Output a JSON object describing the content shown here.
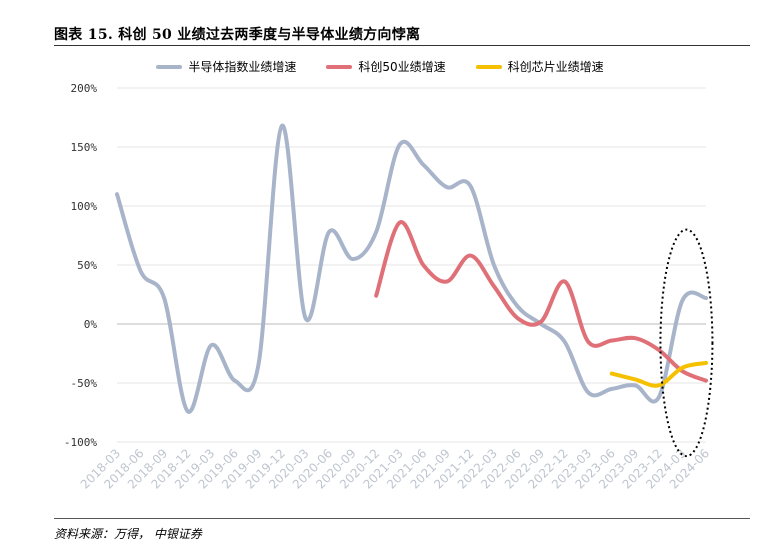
{
  "title": "图表 15. 科创 50 业绩过去两季度与半导体业绩方向悖离",
  "source": "资料来源：万得， 中银证券",
  "chart_data": {
    "type": "line",
    "categories": [
      "2018-03",
      "2018-06",
      "2018-09",
      "2018-12",
      "2019-03",
      "2019-06",
      "2019-09",
      "2019-12",
      "2020-03",
      "2020-06",
      "2020-09",
      "2020-12",
      "2021-03",
      "2021-06",
      "2021-09",
      "2021-12",
      "2022-03",
      "2022-06",
      "2022-09",
      "2022-12",
      "2023-03",
      "2023-06",
      "2023-09",
      "2023-12",
      "2024-03",
      "2024-06"
    ],
    "y_ticks": [
      "200%",
      "150%",
      "100%",
      "50%",
      "0%",
      "-50%",
      "-100%"
    ],
    "ylim": [
      -100,
      200
    ],
    "grid": "horizontal",
    "legend_position": "top",
    "series": [
      {
        "name": "半导体指数业绩增速",
        "color": "#a8b4c9",
        "values": [
          110,
          45,
          22,
          -74,
          -18,
          -48,
          -35,
          168,
          5,
          78,
          55,
          78,
          152,
          135,
          116,
          117,
          50,
          15,
          0,
          -15,
          -58,
          -55,
          -52,
          -62,
          20,
          22
        ]
      },
      {
        "name": "科创50业绩增速",
        "color": "#e07078",
        "values": [
          null,
          null,
          null,
          null,
          null,
          null,
          null,
          null,
          null,
          null,
          null,
          24,
          86,
          50,
          36,
          58,
          32,
          5,
          2,
          36,
          -15,
          -14,
          -12,
          -22,
          -40,
          -48
        ]
      },
      {
        "name": "科创芯片业绩增速",
        "color": "#f5c000",
        "values": [
          null,
          null,
          null,
          null,
          null,
          null,
          null,
          null,
          null,
          null,
          null,
          null,
          null,
          null,
          null,
          null,
          null,
          null,
          null,
          null,
          null,
          -42,
          -47,
          -52,
          -37,
          -33
        ]
      }
    ]
  }
}
